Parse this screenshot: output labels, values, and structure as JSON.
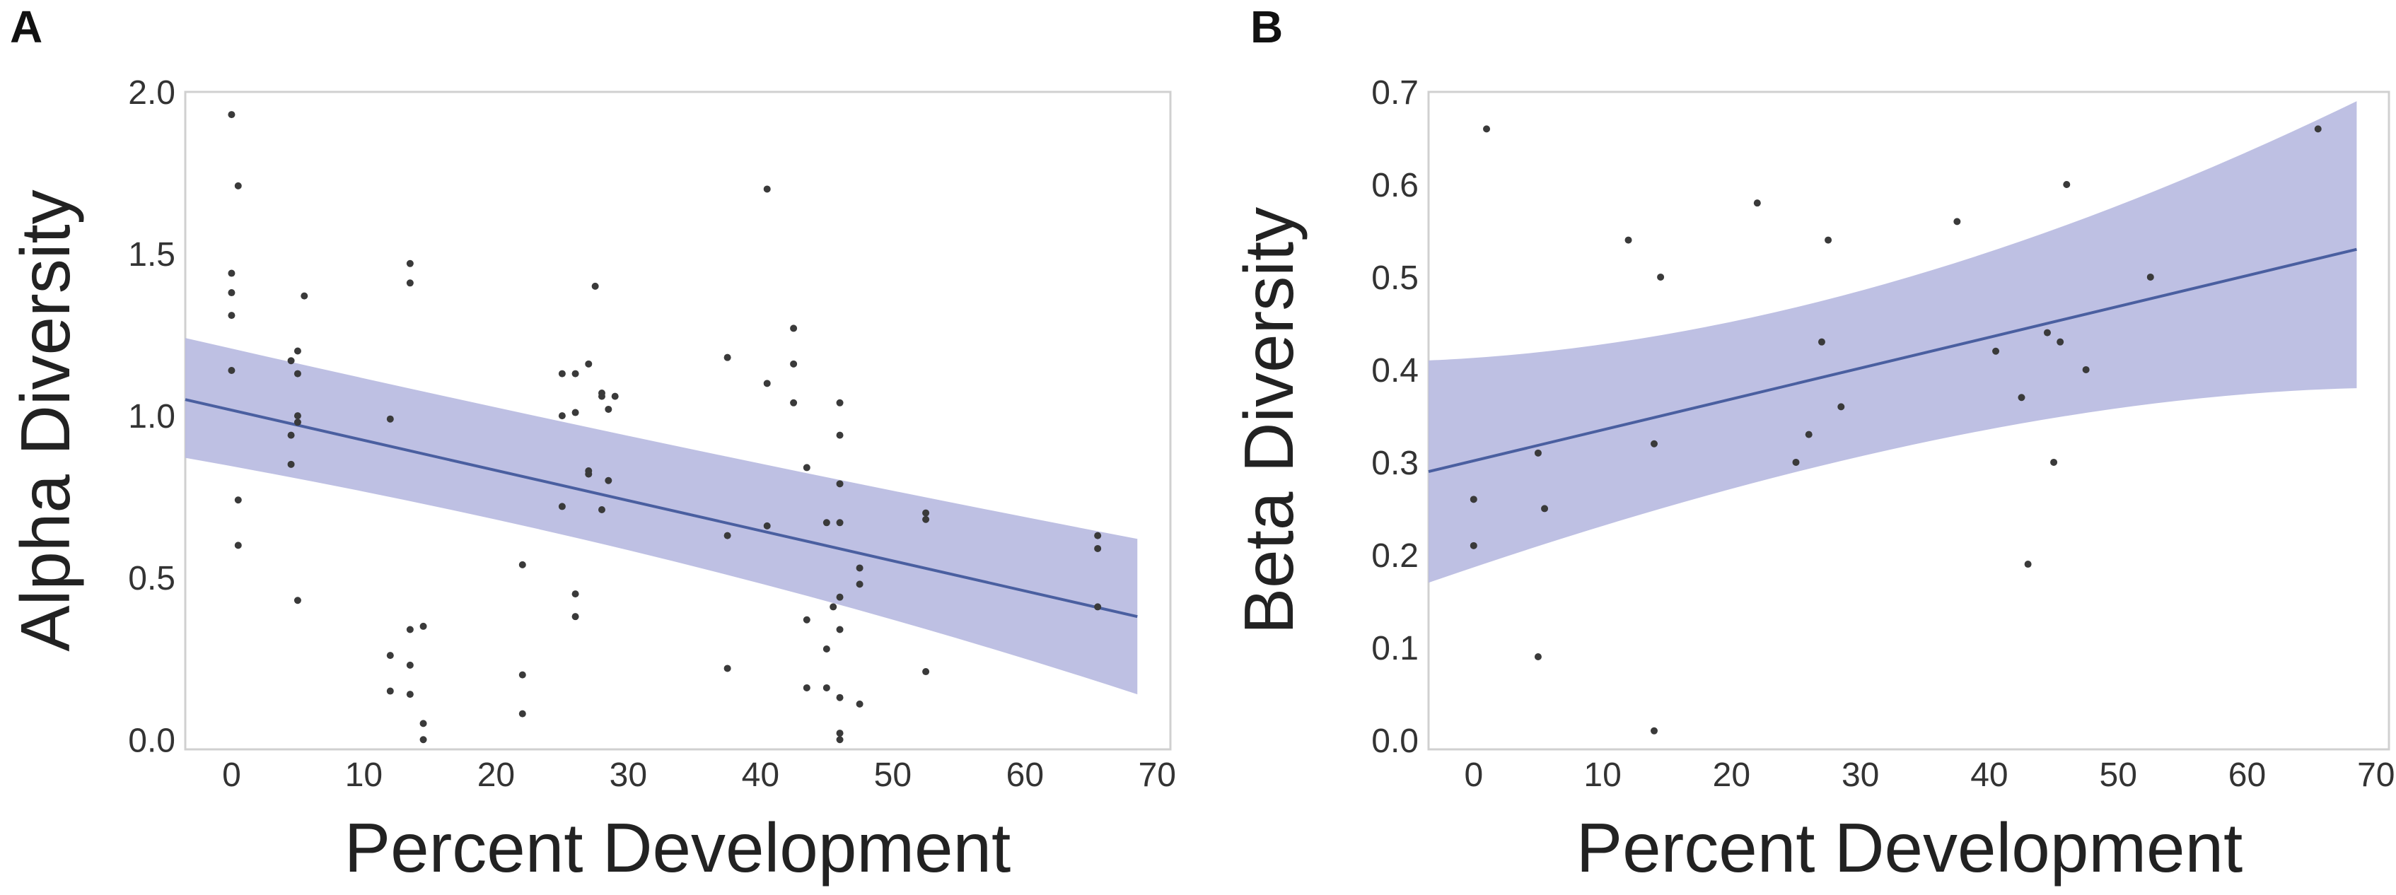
{
  "chart_data": [
    {
      "panel": "A",
      "type": "scatter",
      "xlabel": "Percent Development",
      "ylabel": "Alpha Diversity",
      "xlim": [
        -3.5,
        71
      ],
      "ylim": [
        -0.03,
        2.0
      ],
      "xticks": [
        0,
        10,
        20,
        30,
        40,
        50,
        60,
        70
      ],
      "yticks": [
        "0.0",
        "0.5",
        "1.0",
        "1.5",
        "2.0"
      ],
      "grid": false,
      "colors": {
        "line": "#4a5fa0",
        "band": "#b7b9e0",
        "points": "#3a3a3a",
        "frame": "#d0d0d0"
      },
      "points": [
        [
          0,
          1.93
        ],
        [
          0.5,
          1.71
        ],
        [
          0,
          1.44
        ],
        [
          0,
          1.38
        ],
        [
          0,
          1.31
        ],
        [
          0,
          1.14
        ],
        [
          0.5,
          0.74
        ],
        [
          0.5,
          0.6
        ],
        [
          5,
          1.2
        ],
        [
          5.5,
          1.37
        ],
        [
          4.5,
          1.17
        ],
        [
          5,
          1.13
        ],
        [
          5,
          1.0
        ],
        [
          5,
          0.98
        ],
        [
          4.5,
          0.94
        ],
        [
          4.5,
          0.85
        ],
        [
          5,
          0.43
        ],
        [
          12,
          0.99
        ],
        [
          12,
          0.26
        ],
        [
          12,
          0.15
        ],
        [
          13.5,
          1.47
        ],
        [
          13.5,
          1.41
        ],
        [
          13.5,
          0.34
        ],
        [
          13.5,
          0.23
        ],
        [
          13.5,
          0.14
        ],
        [
          14.5,
          0.35
        ],
        [
          14.5,
          0.05
        ],
        [
          14.5,
          0.0
        ],
        [
          22,
          0.54
        ],
        [
          22,
          0.2
        ],
        [
          22,
          0.08
        ],
        [
          25,
          1.13
        ],
        [
          25,
          1.0
        ],
        [
          25,
          0.72
        ],
        [
          26,
          1.13
        ],
        [
          26,
          1.01
        ],
        [
          26,
          0.45
        ],
        [
          26,
          0.38
        ],
        [
          27,
          1.16
        ],
        [
          27,
          0.83
        ],
        [
          27,
          0.82
        ],
        [
          27.5,
          1.4
        ],
        [
          28,
          1.07
        ],
        [
          28,
          1.06
        ],
        [
          28,
          0.71
        ],
        [
          28.5,
          1.02
        ],
        [
          28.5,
          0.8
        ],
        [
          29,
          1.06
        ],
        [
          37.5,
          1.18
        ],
        [
          37.5,
          0.63
        ],
        [
          37.5,
          0.22
        ],
        [
          40.5,
          1.7
        ],
        [
          40.5,
          1.1
        ],
        [
          40.5,
          0.66
        ],
        [
          42.5,
          1.27
        ],
        [
          42.5,
          1.16
        ],
        [
          42.5,
          1.04
        ],
        [
          43.5,
          0.84
        ],
        [
          43.5,
          0.37
        ],
        [
          43.5,
          0.16
        ],
        [
          45,
          0.67
        ],
        [
          45,
          0.28
        ],
        [
          45,
          0.16
        ],
        [
          46,
          1.04
        ],
        [
          46,
          0.94
        ],
        [
          46,
          0.79
        ],
        [
          46,
          0.67
        ],
        [
          46,
          0.44
        ],
        [
          45.5,
          0.41
        ],
        [
          46,
          0.34
        ],
        [
          46,
          0.13
        ],
        [
          46,
          0.02
        ],
        [
          46,
          0.0
        ],
        [
          47.5,
          0.53
        ],
        [
          47.5,
          0.48
        ],
        [
          47.5,
          0.11
        ],
        [
          52.5,
          0.7
        ],
        [
          52.5,
          0.68
        ],
        [
          52.5,
          0.21
        ],
        [
          65.5,
          0.63
        ],
        [
          65.5,
          0.59
        ],
        [
          65.5,
          0.41
        ]
      ],
      "fit": {
        "x": [
          -3.5,
          68.5
        ],
        "y": [
          1.05,
          0.38
        ]
      },
      "band": {
        "x": [
          -3.5,
          68.5
        ],
        "upper": [
          1.24,
          0.62
        ],
        "lower": [
          0.87,
          0.14
        ],
        "upper_mid": [
          34,
          0.89
        ],
        "lower_mid": [
          34,
          0.6
        ]
      }
    },
    {
      "panel": "B",
      "type": "scatter",
      "xlabel": "Percent Development",
      "ylabel": "Beta Diversity",
      "xlim": [
        -3.5,
        71
      ],
      "ylim": [
        -0.01,
        0.7
      ],
      "xticks": [
        0,
        10,
        20,
        30,
        40,
        50,
        60,
        70
      ],
      "yticks": [
        "0.0",
        "0.1",
        "0.2",
        "0.3",
        "0.4",
        "0.5",
        "0.6",
        "0.7"
      ],
      "grid": false,
      "colors": {
        "line": "#4a5fa0",
        "band": "#b7b9e0",
        "points": "#3a3a3a",
        "frame": "#d0d0d0"
      },
      "points": [
        [
          1,
          0.66
        ],
        [
          0,
          0.26
        ],
        [
          0,
          0.21
        ],
        [
          5,
          0.31
        ],
        [
          5.5,
          0.25
        ],
        [
          5,
          0.09
        ],
        [
          12,
          0.54
        ],
        [
          14,
          0.32
        ],
        [
          14.5,
          0.5
        ],
        [
          14,
          0.01
        ],
        [
          22,
          0.58
        ],
        [
          25,
          0.3
        ],
        [
          26,
          0.33
        ],
        [
          27,
          0.43
        ],
        [
          27.5,
          0.54
        ],
        [
          28.5,
          0.36
        ],
        [
          37.5,
          0.56
        ],
        [
          40.5,
          0.42
        ],
        [
          42.5,
          0.37
        ],
        [
          43,
          0.19
        ],
        [
          44.5,
          0.44
        ],
        [
          45,
          0.3
        ],
        [
          45.5,
          0.43
        ],
        [
          46,
          0.6
        ],
        [
          47.5,
          0.4
        ],
        [
          52.5,
          0.5
        ],
        [
          65.5,
          0.66
        ]
      ],
      "fit": {
        "x": [
          -3.5,
          68.5
        ],
        "y": [
          0.29,
          0.53
        ]
      },
      "band": {
        "x": [
          -3.5,
          68.5
        ],
        "upper": [
          0.41,
          0.69
        ],
        "lower": [
          0.17,
          0.38
        ],
        "upper_mid": [
          30,
          0.43
        ],
        "lower_mid": [
          38,
          0.37
        ]
      }
    }
  ],
  "panels": [
    {
      "letter": "A"
    },
    {
      "letter": "B"
    }
  ]
}
